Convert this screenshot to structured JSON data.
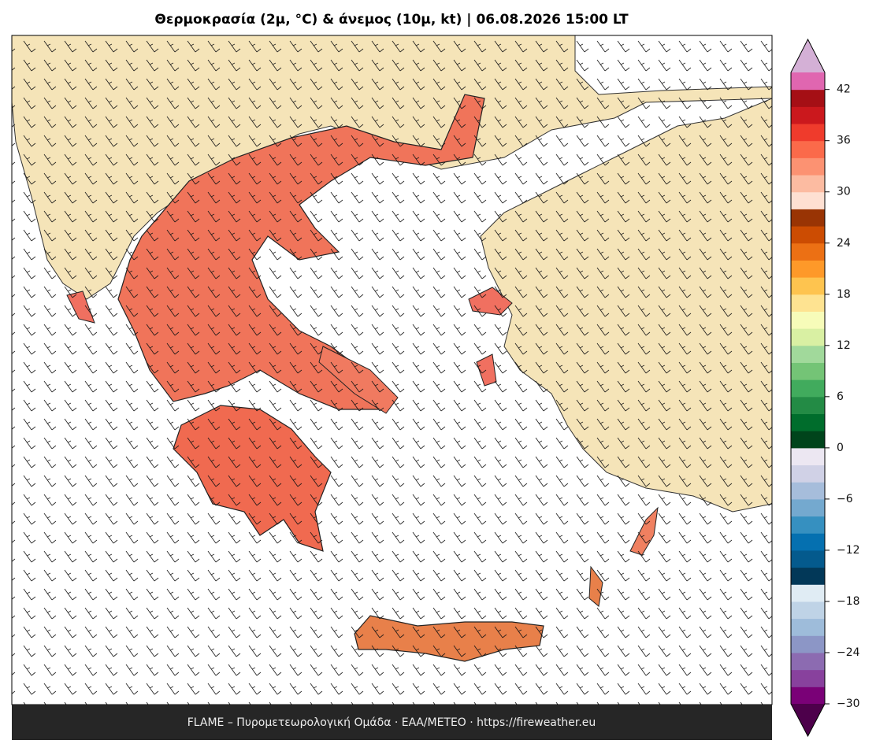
{
  "title": "Θερμοκρασία (2μ, °C) & άνεμος (10μ, kt)  |  06.08.2026 15:00 LT",
  "footer": "FLAME – Πυρομετεωρολογική Ομάδα · ΕΑΑ/METEO · https://fireweather.eu",
  "colorbar": {
    "lim": [
      -30,
      44
    ],
    "ticks": [
      {
        "value": -30,
        "label": "−30"
      },
      {
        "value": -24,
        "label": "−24"
      },
      {
        "value": -18,
        "label": "−18"
      },
      {
        "value": -12,
        "label": "−12"
      },
      {
        "value": -6,
        "label": "−6"
      },
      0,
      6,
      12,
      18,
      24,
      30,
      36,
      42
    ],
    "colors": [
      "#7a0177",
      "#88419d",
      "#8c6bb1",
      "#8c96c6",
      "#9ebcda",
      "#bfd3e6",
      "#e0ecf4",
      "#023858",
      "#045a8d",
      "#0570b0",
      "#3690c0",
      "#74a9cf",
      "#a6bddb",
      "#d0d1e6",
      "#ece7f2",
      "#00441b",
      "#006d2c",
      "#238b45",
      "#41ab5d",
      "#74c476",
      "#a1d99b",
      "#d9f0a3",
      "#f7fcb9",
      "#fee391",
      "#fec44f",
      "#fe9929",
      "#ec7014",
      "#cc4c02",
      "#993404",
      "#fee0d2",
      "#fcbba1",
      "#fc9272",
      "#fb6a4a",
      "#ef3b2c",
      "#cb181d",
      "#a50f15",
      "#e066b0"
    ],
    "under_color": "#4d004b",
    "over_color": "#d4b0d6"
  }
}
